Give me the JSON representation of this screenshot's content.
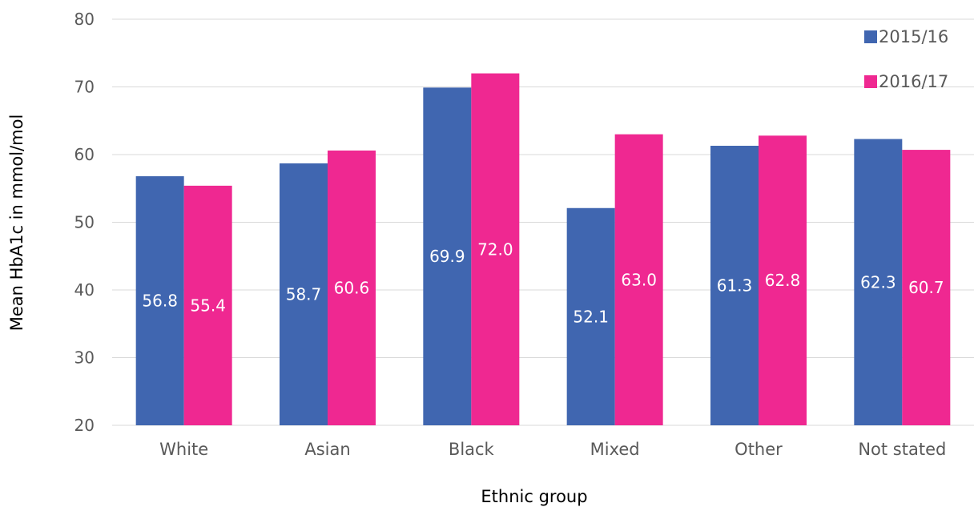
{
  "chart_data": {
    "type": "bar",
    "title": "",
    "xlabel": "Ethnic group",
    "ylabel": "Mean HbA1c in mmol/mol",
    "ylim": [
      20,
      80
    ],
    "yticks": [
      20,
      30,
      40,
      50,
      60,
      70,
      80
    ],
    "grid": true,
    "legend_position": "top-right",
    "categories": [
      "White",
      "Asian",
      "Black",
      "Mixed",
      "Other",
      "Not stated"
    ],
    "series": [
      {
        "name": "2015/16",
        "color": "#4066b0",
        "values": [
          56.8,
          58.7,
          69.9,
          52.1,
          61.3,
          62.3
        ],
        "labels": [
          "56.8",
          "58.7",
          "69.9",
          "52.1",
          "61.3",
          "62.3"
        ]
      },
      {
        "name": "2016/17",
        "color": "#ef2891",
        "values": [
          55.4,
          60.6,
          72.0,
          63.0,
          62.8,
          60.7
        ],
        "labels": [
          "55.4",
          "60.6",
          "72.0",
          "63.0",
          "62.8",
          "60.7"
        ]
      }
    ]
  }
}
